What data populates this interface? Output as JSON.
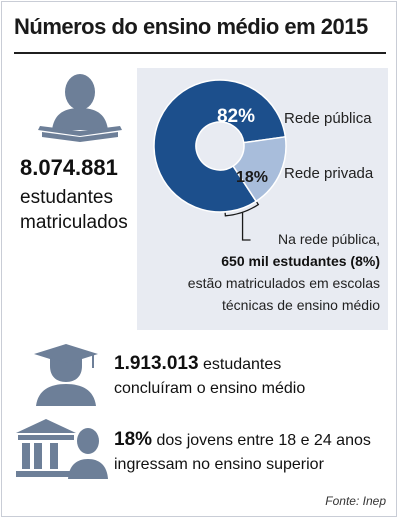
{
  "title": "Números do ensino médio em 2015",
  "enrolled": {
    "value": "8.074.881",
    "line1": "estudantes",
    "line2": "matriculados"
  },
  "chart_data": {
    "type": "pie",
    "title": "",
    "slices": [
      {
        "label": "Rede pública",
        "value": 82,
        "display": "82%",
        "color": "#1c4f8c"
      },
      {
        "label": "Rede privada",
        "value": 18,
        "display": "18%",
        "color": "#a8bddb"
      }
    ],
    "annotation": {
      "line1": "Na rede pública,",
      "line2": "650 mil estudantes (8%)",
      "line3": "estão matriculados em escolas",
      "line4": "técnicas de ensino médio",
      "bracket_value": 8
    }
  },
  "graduated": {
    "value": "1.913.013",
    "rest": "estudantes",
    "line2": "concluíram o ensino médio"
  },
  "higher_ed": {
    "value": "18%",
    "rest": "dos jovens entre 18 e 24 anos",
    "line2": "ingressam no ensino superior"
  },
  "source": "Fonte: Inep",
  "colors": {
    "icon": "#6d7f98",
    "public": "#1c4f8c",
    "private": "#a8bddb",
    "panel": "#e8ebf2"
  },
  "icons": [
    "person-reading-icon",
    "graduate-icon",
    "university-building-icon"
  ]
}
